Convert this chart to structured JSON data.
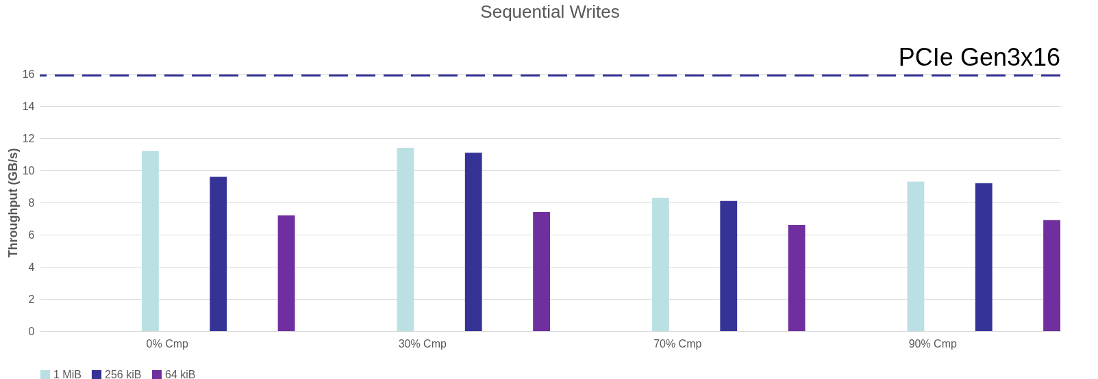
{
  "chart_data": {
    "type": "bar",
    "title": "Sequential Writes",
    "ylabel": "Throughput (GB/s)",
    "categories": [
      "0% Cmp",
      "30% Cmp",
      "70% Cmp",
      "90% Cmp"
    ],
    "series": [
      {
        "name": "1 MiB",
        "color": "#bbe0e3",
        "values": [
          11.2,
          11.4,
          8.3,
          9.3
        ]
      },
      {
        "name": "256 kiB",
        "color": "#353396",
        "values": [
          9.6,
          11.1,
          8.1,
          9.2
        ]
      },
      {
        "name": "64 kiB",
        "color": "#702f9e",
        "values": [
          7.2,
          7.4,
          6.6,
          6.9
        ]
      }
    ],
    "ylim": [
      0,
      16
    ],
    "yticks": [
      0,
      2,
      4,
      6,
      8,
      10,
      12,
      14,
      16
    ],
    "grid": "y",
    "legend": "bottom",
    "ref_lines": [
      {
        "axis": "y",
        "value": 15.9,
        "label": "PCIe Gen3x16",
        "color": "#353396",
        "line_style": "dashed"
      }
    ]
  }
}
